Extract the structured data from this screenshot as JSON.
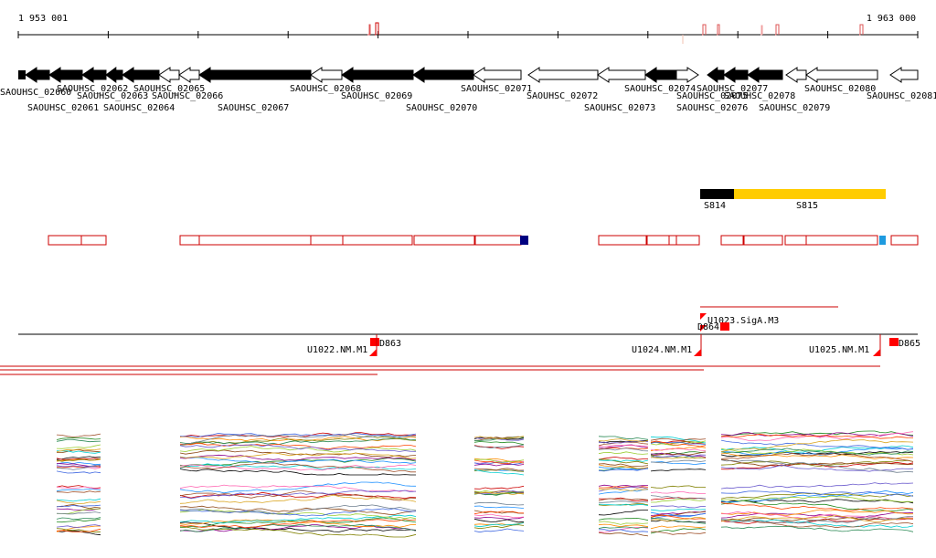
{
  "ruler": {
    "start": "1 953 001",
    "end": "1 963 000"
  },
  "genes": [
    {
      "label": "SAOUHSC_02060",
      "dir": "rev",
      "filled": true
    },
    {
      "label": "SAOUHSC_02061",
      "dir": "rev",
      "filled": true
    },
    {
      "label": "SAOUHSC_02062",
      "dir": "rev",
      "filled": true
    },
    {
      "label": "SAOUHSC_02063",
      "dir": "rev",
      "filled": true
    },
    {
      "label": "SAOUHSC_02064",
      "dir": "rev",
      "filled": true
    },
    {
      "label": "SAOUHSC_02065",
      "dir": "rev",
      "filled": false
    },
    {
      "label": "SAOUHSC_02066",
      "dir": "rev",
      "filled": false
    },
    {
      "label": "SAOUHSC_02067",
      "dir": "rev",
      "filled": true
    },
    {
      "label": "SAOUHSC_02068",
      "dir": "rev",
      "filled": false
    },
    {
      "label": "SAOUHSC_02069",
      "dir": "rev",
      "filled": true
    },
    {
      "label": "SAOUHSC_02070",
      "dir": "rev",
      "filled": true
    },
    {
      "label": "SAOUHSC_02071",
      "dir": "rev",
      "filled": false
    },
    {
      "label": "SAOUHSC_02072",
      "dir": "rev",
      "filled": false
    },
    {
      "label": "SAOUHSC_02073",
      "dir": "rev",
      "filled": false
    },
    {
      "label": "SAOUHSC_02074",
      "dir": "rev",
      "filled": true
    },
    {
      "label": "SAOUHSC_02075",
      "dir": "fwd",
      "filled": false
    },
    {
      "label": "SAOUHSC_02076",
      "dir": "rev",
      "filled": true
    },
    {
      "label": "SAOUHSC_02077",
      "dir": "rev",
      "filled": true
    },
    {
      "label": "SAOUHSC_02078",
      "dir": "rev",
      "filled": true
    },
    {
      "label": "SAOUHSC_02079",
      "dir": "rev",
      "filled": false
    },
    {
      "label": "SAOUHSC_02080",
      "dir": "rev",
      "filled": false
    },
    {
      "label": "SAOUHSC_02081",
      "dir": "rev",
      "filled": false
    }
  ],
  "segments": [
    {
      "label": "S814",
      "color": "#000000"
    },
    {
      "label": "S815",
      "color": "#ffcc00"
    }
  ],
  "transcripts": {
    "sig_label": "U1023.SigA.M3",
    "units": [
      "U1022.NM.M1",
      "U1024.NM.M1",
      "U1025.NM.M1"
    ],
    "terminators": [
      "D863",
      "D864",
      "D865"
    ]
  },
  "colors": {
    "feature_outline": "#cc0000",
    "terminator": "#ff0000",
    "marker_navy": "#000080",
    "marker_cyan": "#1e9be0",
    "gene_fill": "#000000"
  }
}
